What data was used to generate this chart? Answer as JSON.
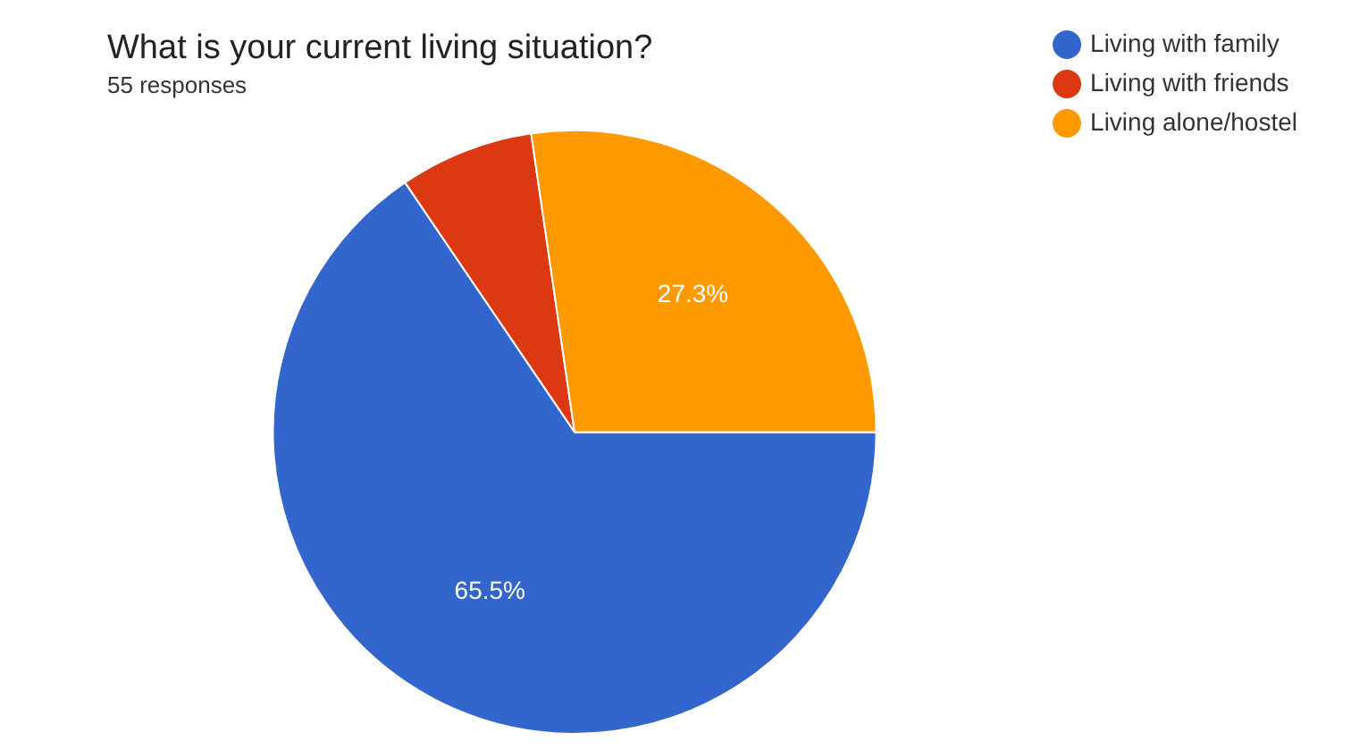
{
  "chart_data": {
    "type": "pie",
    "title": "What is your current living situation?",
    "subtitle": "55 responses",
    "categories": [
      "Living with family",
      "Living with friends",
      "Living alone/hostel"
    ],
    "values": [
      65.5,
      7.2,
      27.3
    ],
    "colors": [
      "#3366cc",
      "#dc3912",
      "#ff9900"
    ],
    "value_labels": [
      "65.5%",
      null,
      "27.3%"
    ],
    "legend": "top right"
  }
}
